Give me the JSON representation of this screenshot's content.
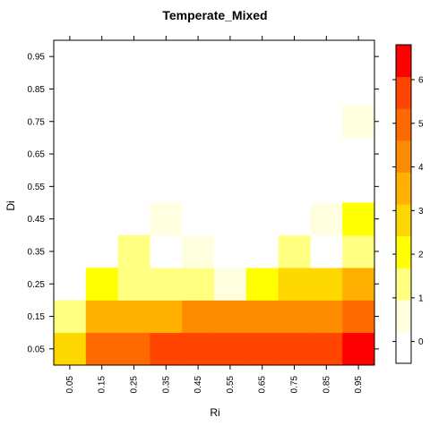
{
  "chart_data": {
    "type": "heatmap",
    "title": "Temperate_Mixed",
    "xlabel": "Ri",
    "ylabel": "Di",
    "x_categories": [
      "0.05",
      "0.15",
      "0.25",
      "0.35",
      "0.45",
      "0.55",
      "0.65",
      "0.75",
      "0.85",
      "0.95"
    ],
    "y_categories": [
      "0.05",
      "0.15",
      "0.25",
      "0.35",
      "0.45",
      "0.55",
      "0.65",
      "0.75",
      "0.85",
      "0.95"
    ],
    "values": [
      [
        3.0,
        5.0,
        5.0,
        5.4,
        5.4,
        5.4,
        5.4,
        5.6,
        6.0,
        6.6
      ],
      [
        1.5,
        3.7,
        3.7,
        3.7,
        4.0,
        4.0,
        4.0,
        4.0,
        4.4,
        5.0
      ],
      [
        null,
        2.0,
        1.4,
        1.3,
        1.3,
        0.6,
        2.0,
        2.7,
        2.7,
        3.2
      ],
      [
        null,
        null,
        1.6,
        0.0,
        0.6,
        0.05,
        0.05,
        1.4,
        0.0,
        1.2
      ],
      [
        null,
        null,
        null,
        0.7,
        0.05,
        0.05,
        0.05,
        0.05,
        0.6,
        1.7
      ],
      [
        null,
        null,
        null,
        null,
        0.02,
        0.02,
        null,
        null,
        0.02,
        null
      ],
      [
        null,
        null,
        null,
        null,
        null,
        null,
        null,
        null,
        null,
        0.02
      ],
      [
        null,
        null,
        null,
        null,
        null,
        null,
        null,
        null,
        null,
        0.6
      ],
      [
        null,
        null,
        null,
        null,
        null,
        null,
        null,
        null,
        null,
        null
      ],
      [
        null,
        null,
        null,
        null,
        null,
        null,
        null,
        null,
        null,
        null
      ]
    ],
    "colorbar": {
      "ticks": [
        "0",
        "1",
        "2",
        "3",
        "4",
        "5",
        "6"
      ],
      "range": [
        -0.5,
        6.8
      ]
    },
    "colors": [
      "#ffffff",
      "#ffffe0",
      "#ffff80",
      "#ffff00",
      "#ffd700",
      "#ffb000",
      "#ff8c00",
      "#ff6a00",
      "#ff4500",
      "#ff0000"
    ]
  }
}
